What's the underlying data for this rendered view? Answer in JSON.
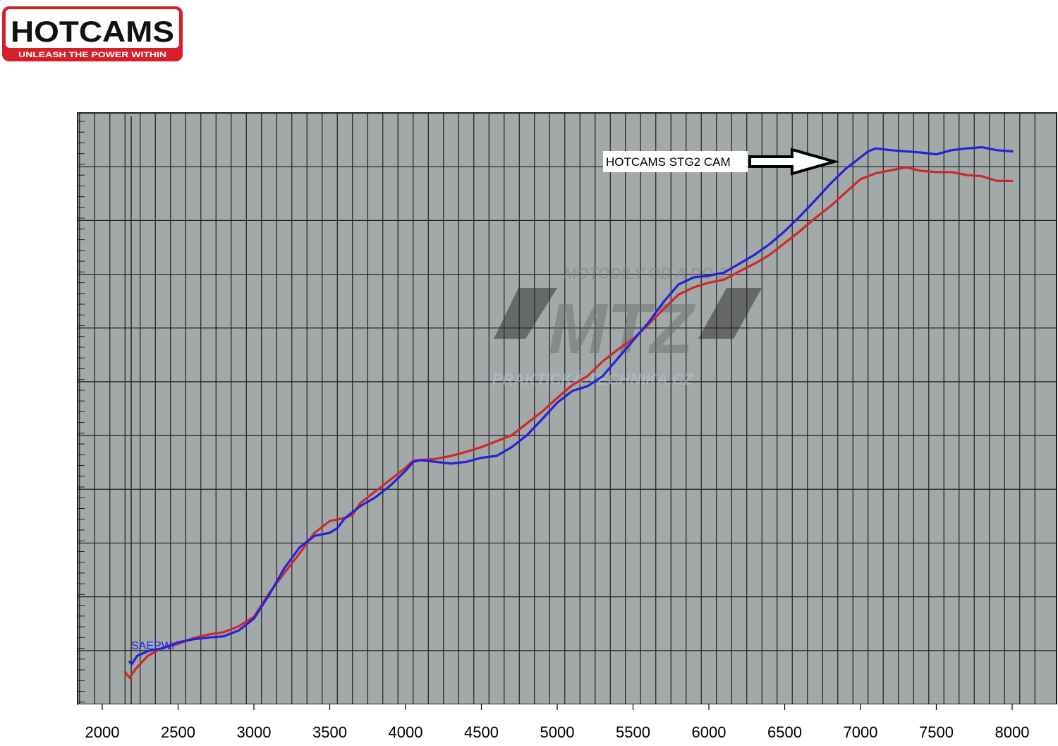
{
  "logo": {
    "brand": "HOTCAMS",
    "tagline": "UNLEASH THE POWER WITHIN",
    "colors": {
      "red": "#d4202a",
      "black": "#111111"
    }
  },
  "watermark": {
    "top": "MOTODÍLY OD A DO Z",
    "mark": "MTZ",
    "bottom": "PRAKTICKÁ TECHNIKA.CZ"
  },
  "chart_data": {
    "type": "line",
    "title": "",
    "xlabel": "",
    "ylabel": "",
    "xlim": [
      1850,
      8150
    ],
    "ylim": [
      0,
      1000
    ],
    "x_ticks": [
      2000,
      2500,
      3000,
      3500,
      4000,
      4500,
      5000,
      5500,
      6000,
      6500,
      7000,
      7500,
      8000
    ],
    "plot_background": "#a3a8a8",
    "grid": true,
    "annotation": {
      "text": "HOTCAMS STG2 CAM",
      "x": 6870,
      "y": 925
    },
    "series_label": {
      "text": "SAEPWr",
      "x": 2200,
      "y": 100
    },
    "series": [
      {
        "color": "#2323d8",
        "points": [
          [
            2180,
            72
          ],
          [
            2195,
            68
          ],
          [
            2230,
            82
          ],
          [
            2300,
            90
          ],
          [
            2400,
            95
          ],
          [
            2500,
            105
          ],
          [
            2600,
            110
          ],
          [
            2700,
            113
          ],
          [
            2800,
            115
          ],
          [
            2900,
            125
          ],
          [
            3000,
            145
          ],
          [
            3100,
            185
          ],
          [
            3200,
            230
          ],
          [
            3300,
            265
          ],
          [
            3400,
            285
          ],
          [
            3500,
            290
          ],
          [
            3550,
            298
          ],
          [
            3600,
            315
          ],
          [
            3700,
            335
          ],
          [
            3800,
            350
          ],
          [
            3900,
            370
          ],
          [
            4000,
            395
          ],
          [
            4050,
            410
          ],
          [
            4100,
            413
          ],
          [
            4200,
            410
          ],
          [
            4300,
            407
          ],
          [
            4400,
            410
          ],
          [
            4500,
            417
          ],
          [
            4600,
            420
          ],
          [
            4700,
            435
          ],
          [
            4800,
            455
          ],
          [
            4900,
            482
          ],
          [
            5000,
            510
          ],
          [
            5100,
            530
          ],
          [
            5200,
            538
          ],
          [
            5300,
            555
          ],
          [
            5400,
            585
          ],
          [
            5500,
            615
          ],
          [
            5600,
            645
          ],
          [
            5700,
            680
          ],
          [
            5800,
            710
          ],
          [
            5900,
            722
          ],
          [
            6000,
            725
          ],
          [
            6100,
            730
          ],
          [
            6200,
            745
          ],
          [
            6300,
            760
          ],
          [
            6400,
            778
          ],
          [
            6500,
            800
          ],
          [
            6600,
            825
          ],
          [
            6700,
            852
          ],
          [
            6800,
            880
          ],
          [
            6900,
            905
          ],
          [
            7000,
            925
          ],
          [
            7050,
            935
          ],
          [
            7100,
            940
          ],
          [
            7200,
            937
          ],
          [
            7300,
            935
          ],
          [
            7400,
            933
          ],
          [
            7500,
            930
          ],
          [
            7600,
            937
          ],
          [
            7700,
            940
          ],
          [
            7800,
            942
          ],
          [
            7900,
            937
          ],
          [
            8000,
            935
          ]
        ]
      },
      {
        "color": "#cc2a2a",
        "points": [
          [
            2150,
            55
          ],
          [
            2180,
            45
          ],
          [
            2220,
            60
          ],
          [
            2300,
            82
          ],
          [
            2400,
            96
          ],
          [
            2500,
            102
          ],
          [
            2600,
            112
          ],
          [
            2700,
            118
          ],
          [
            2800,
            122
          ],
          [
            2900,
            132
          ],
          [
            3000,
            148
          ],
          [
            3100,
            188
          ],
          [
            3200,
            222
          ],
          [
            3300,
            255
          ],
          [
            3400,
            290
          ],
          [
            3500,
            310
          ],
          [
            3600,
            315
          ],
          [
            3650,
            320
          ],
          [
            3700,
            340
          ],
          [
            3800,
            360
          ],
          [
            3900,
            380
          ],
          [
            4000,
            400
          ],
          [
            4050,
            412
          ],
          [
            4100,
            413
          ],
          [
            4200,
            415
          ],
          [
            4300,
            420
          ],
          [
            4400,
            427
          ],
          [
            4500,
            435
          ],
          [
            4600,
            445
          ],
          [
            4700,
            455
          ],
          [
            4800,
            475
          ],
          [
            4900,
            495
          ],
          [
            5000,
            518
          ],
          [
            5100,
            540
          ],
          [
            5200,
            555
          ],
          [
            5300,
            580
          ],
          [
            5400,
            600
          ],
          [
            5500,
            618
          ],
          [
            5600,
            642
          ],
          [
            5700,
            668
          ],
          [
            5800,
            693
          ],
          [
            5900,
            705
          ],
          [
            6000,
            713
          ],
          [
            6100,
            718
          ],
          [
            6200,
            732
          ],
          [
            6300,
            745
          ],
          [
            6400,
            760
          ],
          [
            6500,
            780
          ],
          [
            6600,
            800
          ],
          [
            6700,
            822
          ],
          [
            6800,
            842
          ],
          [
            6900,
            865
          ],
          [
            7000,
            888
          ],
          [
            7100,
            898
          ],
          [
            7200,
            903
          ],
          [
            7300,
            908
          ],
          [
            7400,
            902
          ],
          [
            7500,
            900
          ],
          [
            7600,
            900
          ],
          [
            7700,
            895
          ],
          [
            7800,
            893
          ],
          [
            7900,
            885
          ],
          [
            8000,
            885
          ]
        ]
      }
    ]
  }
}
